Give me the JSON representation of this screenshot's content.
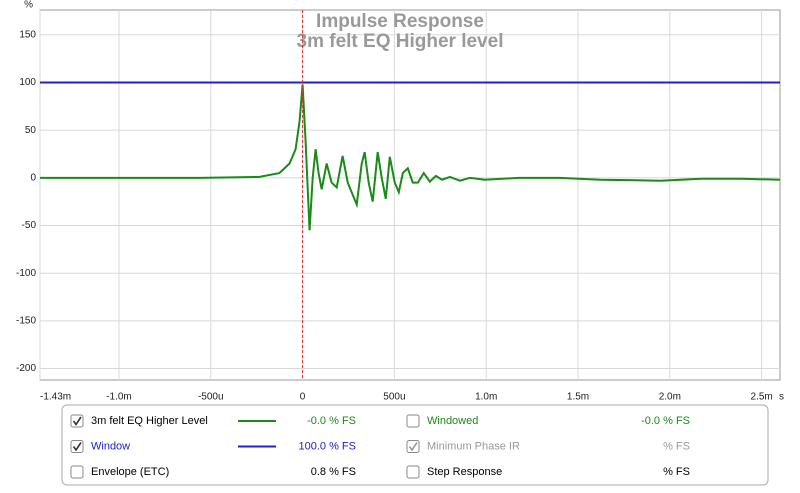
{
  "chart_data": {
    "type": "line",
    "title": "Impulse Response",
    "subtitle": "3m felt EQ Higher level",
    "ylabel": "%",
    "xlabel": "s",
    "xlim": [
      -0.00143,
      0.0026
    ],
    "ylim": [
      -212,
      176
    ],
    "xticks": [
      {
        "value": -0.00143,
        "label": "-1.43m"
      },
      {
        "value": -0.001,
        "label": "-1.0m"
      },
      {
        "value": -0.0005,
        "label": "-500u"
      },
      0,
      {
        "value": 0.0005,
        "label": "500u"
      },
      {
        "value": 0.001,
        "label": "1.0m"
      },
      {
        "value": 0.0015,
        "label": "1.5m"
      },
      {
        "value": 0.002,
        "label": "2.0m"
      },
      {
        "value": 0.0025,
        "label": "2.5m"
      }
    ],
    "yticks": [
      150,
      100,
      50,
      0,
      -50,
      -100,
      -150,
      -200
    ],
    "grid": true,
    "cursor_x": 0,
    "cursor_color": "#e03030",
    "series": [
      {
        "name": "3m felt EQ Higher Level",
        "color": "#1a8a1a",
        "x": [
          -0.00143,
          -0.00056,
          -0.000235,
          -0.000126,
          -7.1e-05,
          -3.8e-05,
          -1.6e-05,
          0,
          1.6e-05,
          3.8e-05,
          5.5e-05,
          7.1e-05,
          8.7e-05,
          0.000104,
          0.000131,
          0.000158,
          0.000186,
          0.000218,
          0.000246,
          0.000267,
          0.000295,
          0.000322,
          0.000338,
          0.00036,
          0.000382,
          0.000409,
          0.000431,
          0.000453,
          0.000475,
          0.000502,
          0.000524,
          0.000546,
          0.000573,
          0.0006,
          0.000628,
          0.00066,
          0.000693,
          0.000726,
          0.000759,
          0.000802,
          0.000857,
          0.000912,
          0.000993,
          0.00118,
          0.0014,
          0.00162,
          0.00195,
          0.00217,
          0.00239,
          0.0026
        ],
        "values": [
          0,
          0,
          1,
          5,
          15,
          30,
          60,
          98,
          40,
          -55,
          0,
          30,
          5,
          -12,
          15,
          -5,
          -10,
          23,
          -5,
          -15,
          -28,
          15,
          27,
          -5,
          -25,
          27,
          0,
          -22,
          22,
          -5,
          -15,
          5,
          10,
          -5,
          -5,
          5,
          -4,
          2,
          -2,
          1,
          -3,
          0,
          -2,
          0,
          0,
          -2,
          -3,
          -1,
          -1,
          -2
        ]
      },
      {
        "name": "Window",
        "color": "#2020d0",
        "x": [
          -0.00143,
          0.0026
        ],
        "values": [
          100,
          100
        ]
      }
    ]
  },
  "legend_panel": {
    "rows": [
      {
        "checked": true,
        "name": "3m felt EQ Higher Level",
        "text_color": "#000000",
        "swatch": "#1a8a1a",
        "value": "-0.0 % FS",
        "value_color": "#1a8a1a"
      },
      {
        "checked": true,
        "name": "Window",
        "text_color": "#2020d0",
        "swatch": "#2020d0",
        "value": "100.0 % FS",
        "value_color": "#2020d0"
      },
      {
        "checked": false,
        "name": "Envelope (ETC)",
        "text_color": "#000000",
        "value": "0.8 % FS",
        "value_color": "#000000"
      },
      {
        "checked": false,
        "name": "Windowed",
        "text_color": "#1a8a1a",
        "value": "-0.0 % FS",
        "value_color": "#1a8a1a"
      },
      {
        "checked": true,
        "name": "Minimum Phase IR",
        "text_color": "#999999",
        "value": "% FS",
        "value_color": "#999999"
      },
      {
        "checked": false,
        "name": "Step Response",
        "text_color": "#000000",
        "value": "% FS",
        "value_color": "#000000"
      }
    ]
  }
}
